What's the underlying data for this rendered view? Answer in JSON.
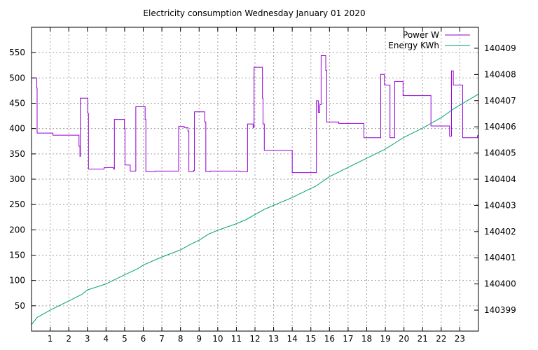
{
  "chart_data": {
    "type": "line",
    "title": "Electricity consumption Wednesday January 01 2020",
    "xlabel": "",
    "ylabel": "",
    "y2label": "",
    "xlim": [
      0,
      24
    ],
    "ylim": [
      0,
      600
    ],
    "y2lim": [
      140398.2,
      140409.8
    ],
    "grid": true,
    "legend_placement": "top-right",
    "x_ticks": [
      1,
      2,
      3,
      4,
      5,
      6,
      7,
      8,
      9,
      10,
      11,
      12,
      13,
      14,
      15,
      16,
      17,
      18,
      19,
      20,
      21,
      22,
      23
    ],
    "y_ticks": [
      50,
      100,
      150,
      200,
      250,
      300,
      350,
      400,
      450,
      500,
      550
    ],
    "y2_ticks": [
      140399,
      140400,
      140401,
      140402,
      140403,
      140404,
      140405,
      140406,
      140407,
      140408,
      140409
    ],
    "series": [
      {
        "name": "Power W",
        "axis": "left",
        "color": "#9400d3",
        "step": true,
        "points": [
          [
            0,
            500
          ],
          [
            0.28,
            480
          ],
          [
            0.3,
            391
          ],
          [
            1.15,
            387
          ],
          [
            2.55,
            365
          ],
          [
            2.6,
            345
          ],
          [
            2.62,
            460
          ],
          [
            3.02,
            430
          ],
          [
            3.06,
            320
          ],
          [
            3.9,
            323
          ],
          [
            4.4,
            320
          ],
          [
            4.45,
            418
          ],
          [
            4.99,
            400
          ],
          [
            5.02,
            328
          ],
          [
            5.3,
            316
          ],
          [
            5.6,
            443
          ],
          [
            6.1,
            418
          ],
          [
            6.14,
            315
          ],
          [
            6.65,
            316
          ],
          [
            7.9,
            404
          ],
          [
            8.2,
            402
          ],
          [
            8.4,
            395
          ],
          [
            8.45,
            315
          ],
          [
            8.7,
            317
          ],
          [
            8.75,
            433
          ],
          [
            9.3,
            413
          ],
          [
            9.36,
            315
          ],
          [
            9.6,
            316
          ],
          [
            11.2,
            315
          ],
          [
            11.6,
            409
          ],
          [
            11.9,
            402
          ],
          [
            11.95,
            521
          ],
          [
            12.4,
            460
          ],
          [
            12.43,
            409
          ],
          [
            12.5,
            357
          ],
          [
            14.0,
            313
          ],
          [
            15.3,
            455
          ],
          [
            15.4,
            432
          ],
          [
            15.48,
            447
          ],
          [
            15.55,
            544
          ],
          [
            15.8,
            515
          ],
          [
            15.85,
            413
          ],
          [
            16.5,
            410
          ],
          [
            17.85,
            382
          ],
          [
            18.75,
            507
          ],
          [
            18.95,
            486
          ],
          [
            19.25,
            382
          ],
          [
            19.5,
            493
          ],
          [
            19.95,
            465
          ],
          [
            21.45,
            405
          ],
          [
            22.45,
            385
          ],
          [
            22.55,
            514
          ],
          [
            22.65,
            486
          ],
          [
            23.15,
            382
          ],
          [
            23.95,
            386
          ],
          [
            24,
            386
          ]
        ]
      },
      {
        "name": "Energy KWh",
        "axis": "right",
        "color": "#009e73",
        "step": false,
        "points": [
          [
            0,
            140398.45
          ],
          [
            0.3,
            140398.72
          ],
          [
            1,
            140399.0
          ],
          [
            2,
            140399.35
          ],
          [
            2.7,
            140399.6
          ],
          [
            3,
            140399.77
          ],
          [
            4,
            140400.0
          ],
          [
            5,
            140400.35
          ],
          [
            5.7,
            140400.58
          ],
          [
            6,
            140400.72
          ],
          [
            7,
            140401.03
          ],
          [
            8,
            140401.3
          ],
          [
            8.5,
            140401.5
          ],
          [
            9,
            140401.67
          ],
          [
            9.5,
            140401.9
          ],
          [
            10,
            140402.05
          ],
          [
            11,
            140402.3
          ],
          [
            11.5,
            140402.45
          ],
          [
            12.5,
            140402.85
          ],
          [
            14,
            140403.3
          ],
          [
            15.3,
            140403.75
          ],
          [
            16,
            140404.1
          ],
          [
            17,
            140404.45
          ],
          [
            18,
            140404.8
          ],
          [
            19,
            140405.15
          ],
          [
            20,
            140405.6
          ],
          [
            21,
            140405.95
          ],
          [
            22,
            140406.35
          ],
          [
            22.7,
            140406.7
          ],
          [
            24,
            140407.25
          ]
        ]
      }
    ]
  }
}
